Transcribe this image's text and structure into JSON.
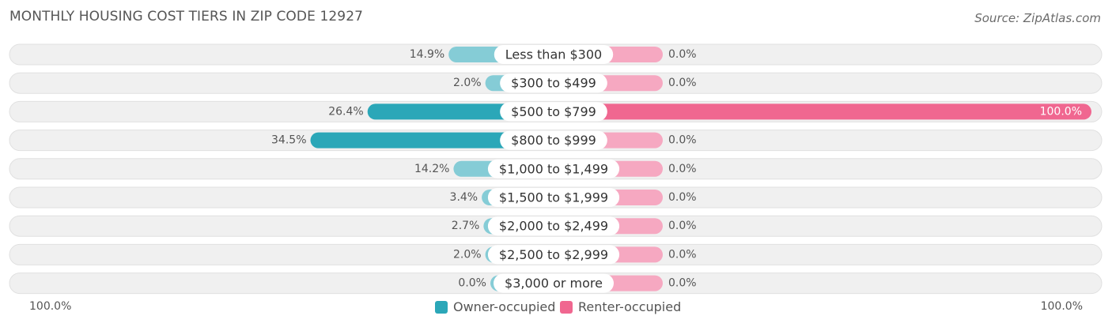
{
  "title": "MONTHLY HOUSING COST TIERS IN ZIP CODE 12927",
  "source": "Source: ZipAtlas.com",
  "colors": {
    "owner": "#2ba7b8",
    "owner_light": "#85ccd6",
    "renter": "#f06790",
    "renter_light": "#f6a8c1",
    "row_bg": "#f0f0f0",
    "row_border": "#e0e0e0"
  },
  "legend": {
    "owner_label": "Owner-occupied",
    "renter_label": "Renter-occupied"
  },
  "axis": {
    "left_label": "100.0%",
    "right_label": "100.0%"
  },
  "chart_data": {
    "type": "bar",
    "orientation": "horizontal-diverging",
    "categories": [
      "Less than $300",
      "$300 to $499",
      "$500 to $799",
      "$800 to $999",
      "$1,000 to $1,499",
      "$1,500 to $1,999",
      "$2,000 to $2,499",
      "$2,500 to $2,999",
      "$3,000 or more"
    ],
    "series": [
      {
        "name": "Owner-occupied",
        "values": [
          14.9,
          2.0,
          26.4,
          34.5,
          14.2,
          3.4,
          2.7,
          2.0,
          0.0
        ],
        "labels": [
          "14.9%",
          "2.0%",
          "26.4%",
          "34.5%",
          "14.2%",
          "3.4%",
          "2.7%",
          "2.0%",
          "0.0%"
        ]
      },
      {
        "name": "Renter-occupied",
        "values": [
          0.0,
          0.0,
          100.0,
          0.0,
          0.0,
          0.0,
          0.0,
          0.0,
          0.0
        ],
        "labels": [
          "0.0%",
          "0.0%",
          "100.0%",
          "0.0%",
          "0.0%",
          "0.0%",
          "0.0%",
          "0.0%",
          "0.0%"
        ]
      }
    ],
    "xlim": [
      -100,
      100
    ],
    "legend_position": "bottom-center"
  }
}
